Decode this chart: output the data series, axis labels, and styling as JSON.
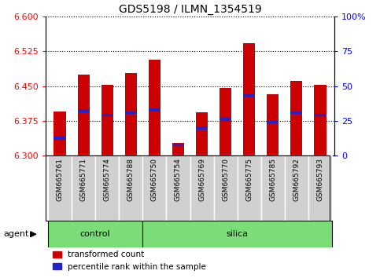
{
  "title": "GDS5198 / ILMN_1354519",
  "samples": [
    "GSM665761",
    "GSM665771",
    "GSM665774",
    "GSM665788",
    "GSM665750",
    "GSM665754",
    "GSM665769",
    "GSM665770",
    "GSM665775",
    "GSM665785",
    "GSM665792",
    "GSM665793"
  ],
  "n_control": 4,
  "bar_top": [
    6.395,
    6.475,
    6.453,
    6.478,
    6.507,
    6.328,
    6.393,
    6.447,
    6.543,
    6.433,
    6.462,
    6.453
  ],
  "bar_bottom": 6.3,
  "blue_pos": [
    6.338,
    6.397,
    6.388,
    6.393,
    6.399,
    6.323,
    6.36,
    6.378,
    6.43,
    6.373,
    6.393,
    6.388
  ],
  "ylim": [
    6.3,
    6.6
  ],
  "yticks_left": [
    6.3,
    6.375,
    6.45,
    6.525,
    6.6
  ],
  "yticks_right": [
    0,
    25,
    50,
    75,
    100
  ],
  "bar_color": "#cc0000",
  "blue_color": "#2222cc",
  "sample_box_color": "#d0d0d0",
  "group_color": "#7bdd78",
  "agent_label": "agent",
  "legend_red": "transformed count",
  "legend_blue": "percentile rank within the sample",
  "title_fontsize": 10,
  "bar_width": 0.5
}
